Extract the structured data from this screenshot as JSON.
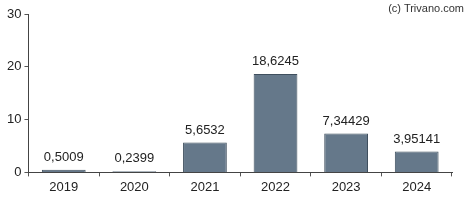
{
  "chart_data": {
    "type": "bar",
    "annotation": "(c) Trivano.com",
    "categories": [
      "2019",
      "2020",
      "2021",
      "2022",
      "2023",
      "2024"
    ],
    "values": [
      0.5009,
      0.2399,
      5.6532,
      18.6245,
      7.34429,
      3.95141
    ],
    "value_labels": [
      "0,5009",
      "0,2399",
      "5,6532",
      "18,6245",
      "7,34429",
      "3,95141"
    ],
    "data_labels": true,
    "color": "#65788a",
    "ylim": [
      0,
      30
    ],
    "yticks": [
      0,
      10,
      20,
      30
    ],
    "grid": false
  }
}
